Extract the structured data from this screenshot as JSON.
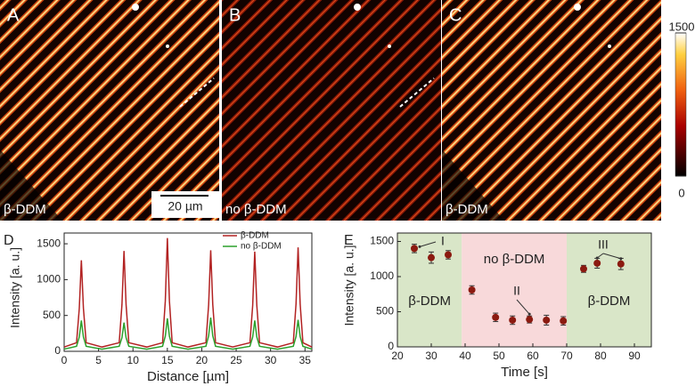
{
  "panels": [
    {
      "label": "A",
      "caption": "β-DDM"
    },
    {
      "label": "B",
      "caption": "no β-DDM"
    },
    {
      "label": "C",
      "caption": "β-DDM"
    }
  ],
  "scale_bar": "20 µm",
  "colorbar": {
    "ticks": [
      0,
      1500
    ]
  },
  "chart_data": [
    {
      "type": "line",
      "panel_label": "D",
      "xlabel": "Distance [µm]",
      "ylabel": "Intensity [a. u.]",
      "xlim": [
        0,
        36
      ],
      "xticks": [
        0,
        5,
        10,
        15,
        20,
        25,
        30,
        35
      ],
      "ylim": [
        0,
        1650
      ],
      "yticks": [
        0,
        500,
        1000,
        1500
      ],
      "x": [
        0,
        1.8,
        2.2,
        2.5,
        2.8,
        3.2,
        5.5,
        8.0,
        8.4,
        8.7,
        9.0,
        9.4,
        12,
        14.3,
        14.7,
        15.0,
        15.3,
        15.7,
        18,
        20.6,
        21.0,
        21.3,
        21.6,
        22.0,
        24.5,
        27.0,
        27.4,
        27.7,
        28.0,
        28.4,
        31,
        33.3,
        33.7,
        34.0,
        34.3,
        34.7,
        36
      ],
      "series": [
        {
          "name": "β-DDM",
          "color": "#b22222",
          "values": [
            60,
            120,
            600,
            1270,
            600,
            120,
            60,
            120,
            650,
            1400,
            650,
            120,
            60,
            120,
            700,
            1580,
            700,
            120,
            60,
            120,
            650,
            1410,
            650,
            120,
            60,
            120,
            640,
            1390,
            640,
            120,
            60,
            120,
            660,
            1450,
            660,
            120,
            60
          ]
        },
        {
          "name": "no β-DDM",
          "color": "#2ca02c",
          "values": [
            30,
            70,
            200,
            430,
            200,
            70,
            30,
            70,
            190,
            400,
            190,
            70,
            30,
            70,
            210,
            460,
            210,
            70,
            30,
            70,
            215,
            470,
            215,
            70,
            30,
            70,
            200,
            430,
            200,
            70,
            30,
            70,
            205,
            440,
            205,
            70,
            30
          ]
        }
      ],
      "legend": "top-right"
    },
    {
      "type": "errorbar",
      "panel_label": "E",
      "xlabel": "Time [s]",
      "ylabel": "Intensity [a. u.]",
      "xlim": [
        20,
        95
      ],
      "xticks": [
        20,
        30,
        40,
        50,
        60,
        70,
        80,
        90
      ],
      "ylim": [
        0,
        1620
      ],
      "yticks": [
        0,
        500,
        1000,
        1500
      ],
      "regions": [
        {
          "from": 20,
          "to": 39,
          "color": "#d9e6c8",
          "label": "β-DDM"
        },
        {
          "from": 39,
          "to": 70,
          "color": "#f8d9da",
          "label": "no β-DDM"
        },
        {
          "from": 70,
          "to": 95,
          "color": "#d9e6c8",
          "label": "β-DDM"
        }
      ],
      "x": [
        25,
        30,
        35,
        42,
        49,
        54,
        59,
        64,
        69,
        75,
        79,
        86
      ],
      "values": [
        1400,
        1270,
        1310,
        810,
        420,
        380,
        390,
        380,
        370,
        1110,
        1190,
        1180
      ],
      "errors": [
        60,
        80,
        60,
        60,
        60,
        60,
        50,
        70,
        60,
        50,
        70,
        80
      ],
      "color": "#8b1a10",
      "annotations": [
        {
          "text": "I"
        },
        {
          "text": "II"
        },
        {
          "text": "III"
        }
      ]
    }
  ]
}
